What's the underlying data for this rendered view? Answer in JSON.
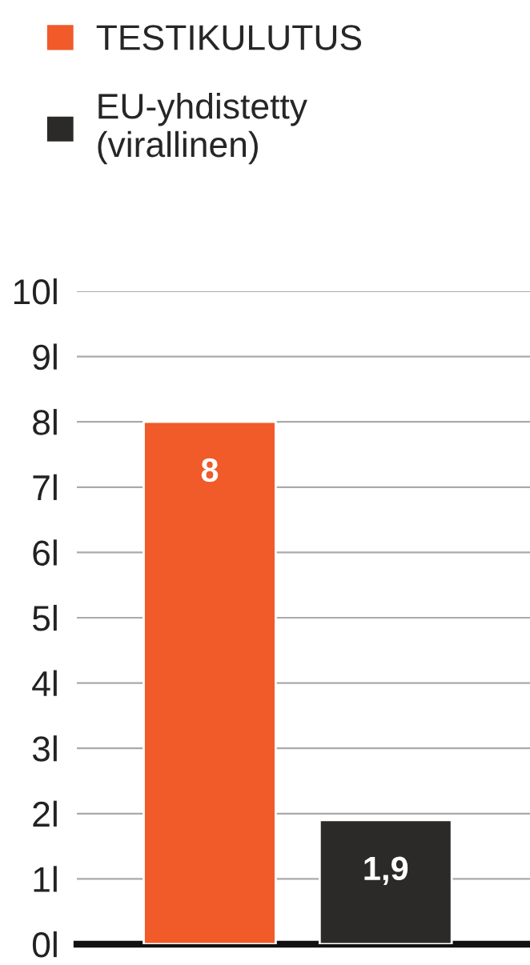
{
  "chart_data": {
    "type": "bar",
    "categories": [
      null,
      null
    ],
    "series": [
      {
        "name": "TESTIKULUTUS",
        "color": "#f15a29",
        "values": [
          8,
          null
        ],
        "value_labels": [
          "8",
          null
        ]
      },
      {
        "name": "EU-yhdistetty\n(virallinen)",
        "color": "#2b2a29",
        "values": [
          null,
          1.9
        ],
        "value_labels": [
          null,
          "1,9"
        ]
      }
    ],
    "ylim": [
      0,
      10
    ],
    "yticks": [
      {
        "value": 0,
        "label": "0l"
      },
      {
        "value": 1,
        "label": "1l"
      },
      {
        "value": 2,
        "label": "2l"
      },
      {
        "value": 3,
        "label": "3l"
      },
      {
        "value": 4,
        "label": "4l"
      },
      {
        "value": 5,
        "label": "5l"
      },
      {
        "value": 6,
        "label": "6l"
      },
      {
        "value": 7,
        "label": "7l"
      },
      {
        "value": 8,
        "label": "8l"
      },
      {
        "value": 9,
        "label": "9l"
      },
      {
        "value": 10,
        "label": "10l"
      }
    ],
    "grid": "y",
    "legend": "top left"
  }
}
